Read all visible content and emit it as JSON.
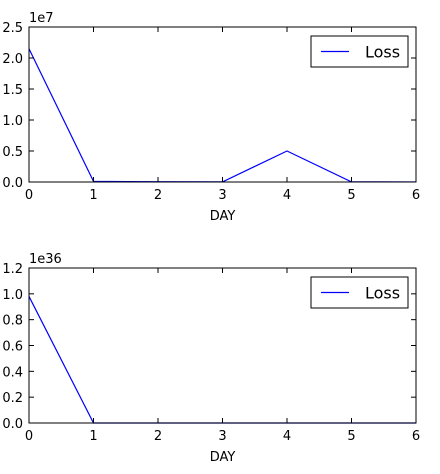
{
  "chart_data": [
    {
      "type": "line",
      "x": [
        0,
        1,
        2,
        3,
        4,
        5,
        6
      ],
      "series": [
        {
          "name": "Loss",
          "values": [
            21500000,
            100000,
            50000,
            20000,
            5000000,
            20000,
            10000
          ],
          "color": "#0000ff"
        }
      ],
      "xlabel": "DAY",
      "ylabel": "",
      "xlim": [
        0,
        6
      ],
      "ylim": [
        0,
        25000000
      ],
      "xticks": [
        "0",
        "1",
        "2",
        "3",
        "4",
        "5",
        "6"
      ],
      "yticks": [
        "0.0",
        "0.5",
        "1.0",
        "1.5",
        "2.0",
        "2.5"
      ],
      "y_offset_label": "1e7",
      "legend": "upper right",
      "grid": false
    },
    {
      "type": "line",
      "x": [
        0,
        1,
        2,
        3,
        4,
        5,
        6
      ],
      "series": [
        {
          "name": "Loss",
          "values": [
            9.8e+35,
            0,
            0,
            0,
            0,
            0,
            0
          ],
          "color": "#0000ff"
        }
      ],
      "xlabel": "DAY",
      "ylabel": "",
      "xlim": [
        0,
        6
      ],
      "ylim": [
        0,
        1.2e+36
      ],
      "xticks": [
        "0",
        "1",
        "2",
        "3",
        "4",
        "5",
        "6"
      ],
      "yticks": [
        "0.0",
        "0.2",
        "0.4",
        "0.6",
        "0.8",
        "1.0",
        "1.2"
      ],
      "y_offset_label": "1e36",
      "legend": "upper right",
      "grid": false
    }
  ]
}
